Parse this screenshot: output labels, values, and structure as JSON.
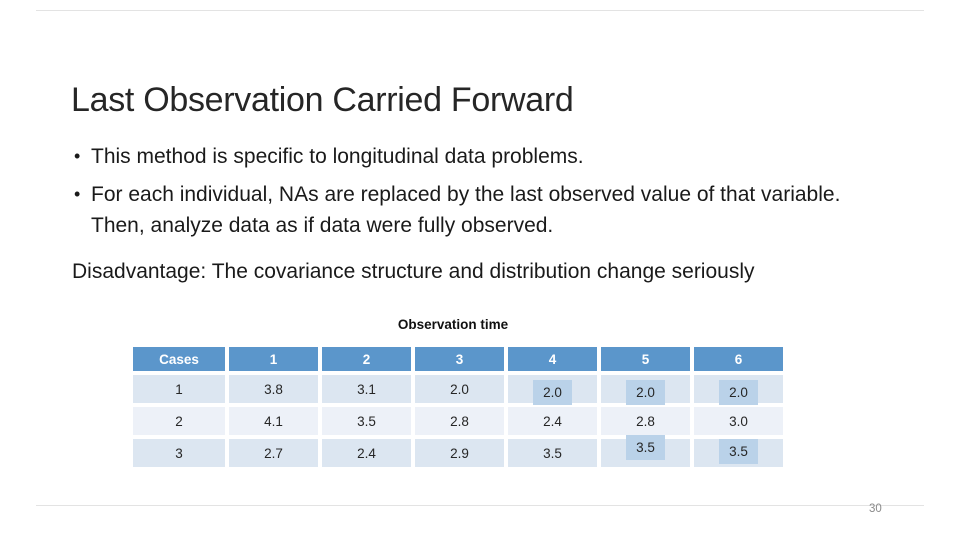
{
  "slide": {
    "title": "Last Observation Carried Forward",
    "bullets": [
      "This method is specific to longitudinal data problems.",
      "For each individual, NAs are replaced by the last observed value of that variable. Then, analyze data as if data were fully observed."
    ],
    "note": "Disadvantage: The covariance structure and distribution change seriously",
    "page_number": "30"
  },
  "table": {
    "caption": "Observation time",
    "headers": [
      "Cases",
      "1",
      "2",
      "3",
      "4",
      "5",
      "6"
    ],
    "rows": [
      {
        "cells": [
          "1",
          "3.8",
          "3.1",
          "2.0",
          "2.0",
          "2.0",
          "2.0"
        ],
        "highlighted": [
          4,
          5,
          6
        ]
      },
      {
        "cells": [
          "2",
          "4.1",
          "3.5",
          "2.8",
          "2.4",
          "2.8",
          "3.0"
        ],
        "highlighted": []
      },
      {
        "cells": [
          "3",
          "2.7",
          "2.4",
          "2.9",
          "3.5",
          "3.5",
          "3.5"
        ],
        "highlighted": [
          5,
          6
        ]
      }
    ],
    "colors": {
      "header_bg": "#5b96cb",
      "header_text": "#ffffff",
      "band_odd": "#dce6f1",
      "band_even": "#edf1f8",
      "highlight": "#bad2e9"
    }
  }
}
